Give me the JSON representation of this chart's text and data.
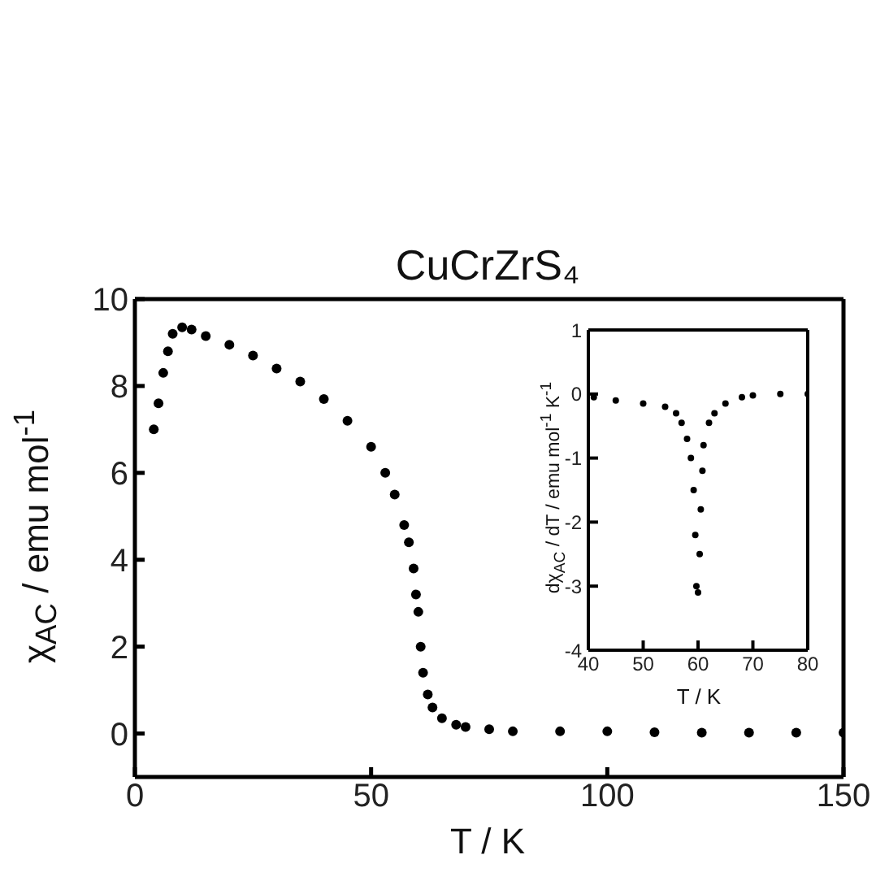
{
  "chart_data": [
    {
      "type": "scatter",
      "title": "CuCrZrS₄",
      "xlabel": "T / K",
      "ylabel": "χ$_{AC}$ / emu mol$^{-1}$",
      "marker": "circle",
      "grid": false,
      "legend": false,
      "xlim": [
        0,
        150
      ],
      "xticks": [
        0,
        50,
        100,
        150
      ],
      "ylim": [
        -1,
        10
      ],
      "yticks": [
        0,
        2,
        4,
        6,
        8,
        10
      ],
      "series": [
        {
          "color": "#000000",
          "x": [
            4,
            5,
            6,
            7,
            8,
            10,
            12,
            15,
            20,
            25,
            30,
            35,
            40,
            45,
            50,
            53,
            55,
            57,
            58,
            59,
            59.5,
            60,
            60.5,
            61,
            62,
            63,
            65,
            68,
            70,
            75,
            80,
            90,
            100,
            110,
            120,
            130,
            140,
            150
          ],
          "values": [
            7.0,
            7.6,
            8.3,
            8.8,
            9.2,
            9.35,
            9.3,
            9.15,
            8.95,
            8.7,
            8.4,
            8.1,
            7.7,
            7.2,
            6.6,
            6.0,
            5.5,
            4.8,
            4.4,
            3.8,
            3.2,
            2.8,
            2.0,
            1.4,
            0.9,
            0.6,
            0.35,
            0.2,
            0.15,
            0.1,
            0.05,
            0.05,
            0.05,
            0.03,
            0.02,
            0.02,
            0.02,
            0.02
          ]
        }
      ]
    },
    {
      "type": "scatter",
      "xlabel": "T / K",
      "ylabel": "dχ$_{AC}$ / dT / emu mol$^{-1}$ K$^{-1}$",
      "marker": "circle",
      "grid": false,
      "legend": false,
      "xlim": [
        40,
        80
      ],
      "xticks": [
        40,
        50,
        60,
        70,
        80
      ],
      "ylim": [
        -4,
        1
      ],
      "yticks": [
        -4,
        -3,
        -2,
        -1,
        0,
        1
      ],
      "series": [
        {
          "color": "#000000",
          "x": [
            41,
            45,
            50,
            54,
            56,
            57,
            58,
            58.7,
            59.2,
            59.5,
            59.7,
            60,
            60.3,
            60.5,
            60.8,
            61,
            62,
            63,
            65,
            68,
            70,
            75,
            80
          ],
          "values": [
            -0.05,
            -0.1,
            -0.15,
            -0.2,
            -0.3,
            -0.45,
            -0.7,
            -1.0,
            -1.5,
            -2.2,
            -3.0,
            -3.1,
            -2.5,
            -1.8,
            -1.2,
            -0.8,
            -0.45,
            -0.3,
            -0.15,
            -0.05,
            -0.02,
            0,
            0
          ]
        }
      ]
    }
  ]
}
